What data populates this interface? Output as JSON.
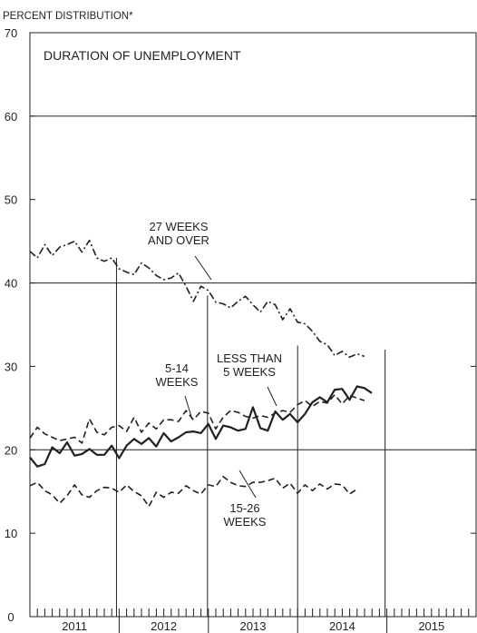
{
  "chart_data": {
    "type": "line",
    "title": "DURATION OF UNEMPLOYMENT",
    "ylabel": "PERCENT DISTRIBUTION*",
    "xlabel": "",
    "ylim": [
      0,
      70
    ],
    "xlim": [
      2011.0,
      2016.0
    ],
    "yticks": [
      0,
      10,
      20,
      30,
      40,
      50,
      60,
      70
    ],
    "gridlines_y": [
      20,
      40,
      60
    ],
    "year_labels": [
      "2011",
      "2012",
      "2013",
      "2014",
      "2015"
    ],
    "year_boundaries": [
      2012,
      2013,
      2014,
      2015
    ],
    "vertical_markers": [
      2011.97,
      2012.99,
      2014.0,
      2014.98
    ],
    "months_per_year": 12,
    "x_start": 2011.0,
    "x_step": 0.0833,
    "series": [
      {
        "name": "27 WEEKS AND OVER",
        "style": "dash-dot",
        "values": [
          43.8,
          43.0,
          44.6,
          43.3,
          44.3,
          44.6,
          45.0,
          43.7,
          45.1,
          43.0,
          42.6,
          43.0,
          41.7,
          41.3,
          41.0,
          42.4,
          41.8,
          40.9,
          40.4,
          40.6,
          41.2,
          39.6,
          37.8,
          39.6,
          39.1,
          37.7,
          37.5,
          37.0,
          37.8,
          38.4,
          37.4,
          36.5,
          37.8,
          37.4,
          35.6,
          36.9,
          35.3,
          35.1,
          34.2,
          33.0,
          32.6,
          31.3,
          31.8,
          31.1,
          31.5,
          31.2
        ]
      },
      {
        "name": "5-14 WEEKS",
        "style": "dashed",
        "values": [
          21.4,
          22.7,
          21.9,
          21.5,
          21.1,
          21.3,
          21.5,
          20.8,
          23.7,
          22.1,
          21.8,
          22.7,
          22.9,
          22.2,
          23.9,
          22.1,
          23.2,
          22.5,
          23.6,
          23.6,
          23.4,
          24.7,
          23.6,
          24.6,
          24.4,
          22.5,
          23.9,
          24.7,
          24.5,
          24.0,
          23.8,
          24.1,
          23.9,
          24.4,
          24.7,
          24.5,
          25.4,
          25.9,
          25.2,
          25.8,
          25.6,
          26.6,
          25.5,
          26.5,
          26.2,
          25.9
        ]
      },
      {
        "name": "LESS THAN 5 WEEKS",
        "style": "solid",
        "values": [
          19.1,
          18.0,
          18.3,
          20.3,
          19.6,
          20.9,
          19.3,
          19.5,
          20.1,
          19.4,
          19.4,
          20.5,
          19.0,
          20.5,
          21.3,
          20.7,
          21.4,
          20.4,
          22.0,
          21.0,
          21.5,
          22.1,
          22.2,
          22.0,
          23.1,
          21.3,
          22.9,
          22.7,
          22.3,
          22.5,
          25.1,
          22.6,
          22.3,
          24.6,
          23.6,
          24.3,
          23.3,
          24.3,
          25.7,
          26.3,
          25.7,
          27.2,
          27.3,
          26.0,
          27.6,
          27.4,
          26.8
        ]
      },
      {
        "name": "15-26 WEEKS",
        "style": "dashed",
        "values": [
          15.7,
          16.1,
          15.1,
          14.6,
          13.6,
          14.5,
          15.8,
          14.6,
          14.3,
          15.1,
          15.5,
          15.4,
          14.9,
          15.8,
          15.0,
          14.5,
          13.2,
          14.9,
          14.3,
          14.9,
          14.8,
          15.7,
          15.1,
          14.7,
          15.8,
          15.6,
          16.8,
          16.1,
          15.7,
          15.6,
          16.1,
          16.1,
          16.3,
          16.6,
          15.4,
          16.0,
          14.8,
          15.8,
          15.1,
          15.9,
          15.3,
          15.9,
          15.8,
          14.7,
          15.3
        ]
      }
    ],
    "annotations": [
      {
        "lines": [
          "27  WEEKS",
          "AND  OVER"
        ],
        "series": "27 WEEKS AND OVER"
      },
      {
        "lines": [
          "5-14",
          "WEEKS"
        ],
        "series": "5-14 WEEKS"
      },
      {
        "lines": [
          "LESS THAN",
          "5 WEEKS"
        ],
        "series": "LESS THAN 5 WEEKS"
      },
      {
        "lines": [
          "15-26",
          "WEEKS"
        ],
        "series": "15-26 WEEKS"
      }
    ],
    "colors": {
      "ink": "#231f20",
      "background": "#ffffff"
    }
  }
}
